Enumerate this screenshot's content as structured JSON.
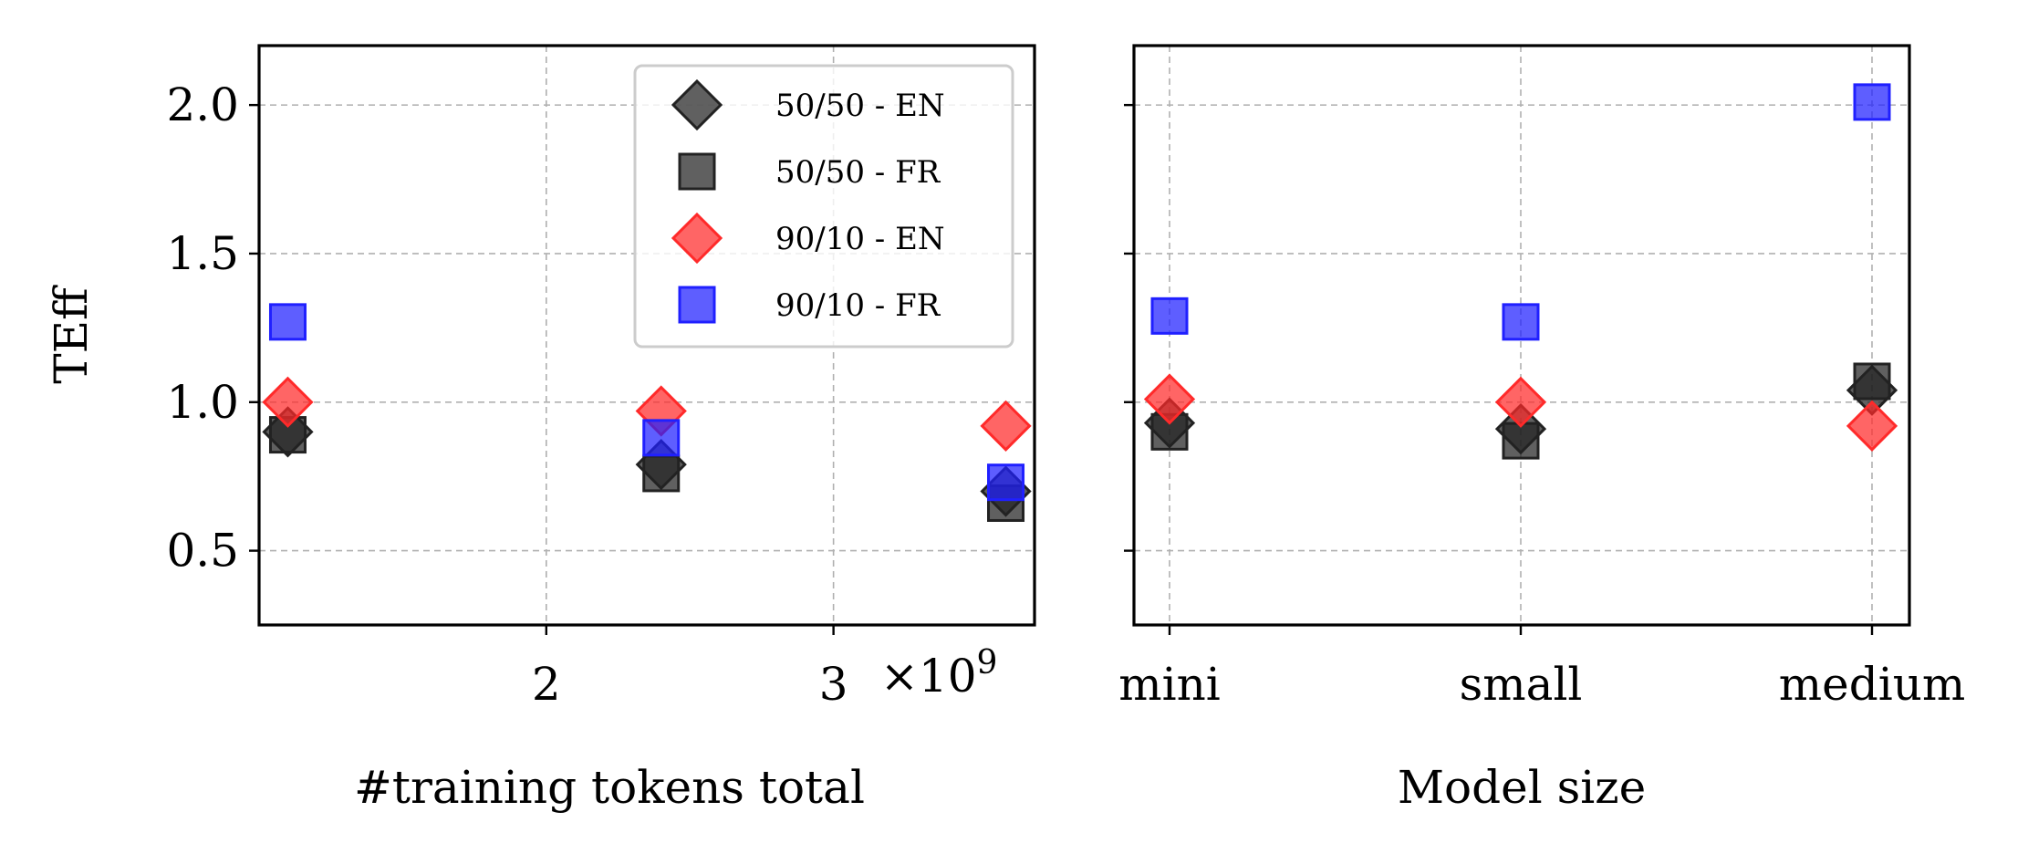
{
  "chart_data": [
    {
      "type": "scatter",
      "xlabel": "#training tokens total",
      "ylabel": "TEff",
      "x_ticks": [
        2,
        3
      ],
      "x_offset_text": "×10",
      "x_offset_exp": "9",
      "y_ticks": [
        "0.5",
        "1.0",
        "1.5",
        "2.0"
      ],
      "xlim": [
        1.0,
        3.7
      ],
      "ylim": [
        0.25,
        2.2
      ],
      "grid": true,
      "legend_position": "upper right",
      "legend": [
        "50/50 - EN",
        "50/50 - FR",
        "90/10 - EN",
        "90/10 - FR"
      ],
      "series": [
        {
          "name": "50/50 - EN",
          "marker": "diamond",
          "color": "#222222",
          "x": [
            1.1,
            2.4,
            3.6
          ],
          "y": [
            0.9,
            0.79,
            0.7
          ]
        },
        {
          "name": "50/50 - FR",
          "marker": "square",
          "color": "#222222",
          "x": [
            1.1,
            2.4,
            3.6
          ],
          "y": [
            0.89,
            0.76,
            0.66
          ]
        },
        {
          "name": "90/10 - EN",
          "marker": "diamond",
          "color": "#ff2a2a",
          "x": [
            1.1,
            2.4,
            3.6
          ],
          "y": [
            1.0,
            0.97,
            0.92
          ]
        },
        {
          "name": "90/10 - FR",
          "marker": "square",
          "color": "#2020ff",
          "x": [
            1.1,
            2.4,
            3.6
          ],
          "y": [
            1.27,
            0.88,
            0.73
          ]
        }
      ]
    },
    {
      "type": "scatter",
      "xlabel": "Model size",
      "ylabel": "",
      "categories": [
        "mini",
        "small",
        "medium"
      ],
      "ylim": [
        0.25,
        2.2
      ],
      "grid": true,
      "series": [
        {
          "name": "50/50 - EN",
          "marker": "diamond",
          "color": "#222222",
          "y": [
            0.93,
            0.91,
            1.04
          ]
        },
        {
          "name": "50/50 - FR",
          "marker": "square",
          "color": "#222222",
          "y": [
            0.9,
            0.87,
            1.07
          ]
        },
        {
          "name": "90/10 - EN",
          "marker": "diamond",
          "color": "#ff2a2a",
          "y": [
            1.01,
            1.0,
            0.92
          ]
        },
        {
          "name": "90/10 - FR",
          "marker": "square",
          "color": "#2020ff",
          "y": [
            1.29,
            1.27,
            2.01
          ]
        }
      ]
    }
  ]
}
